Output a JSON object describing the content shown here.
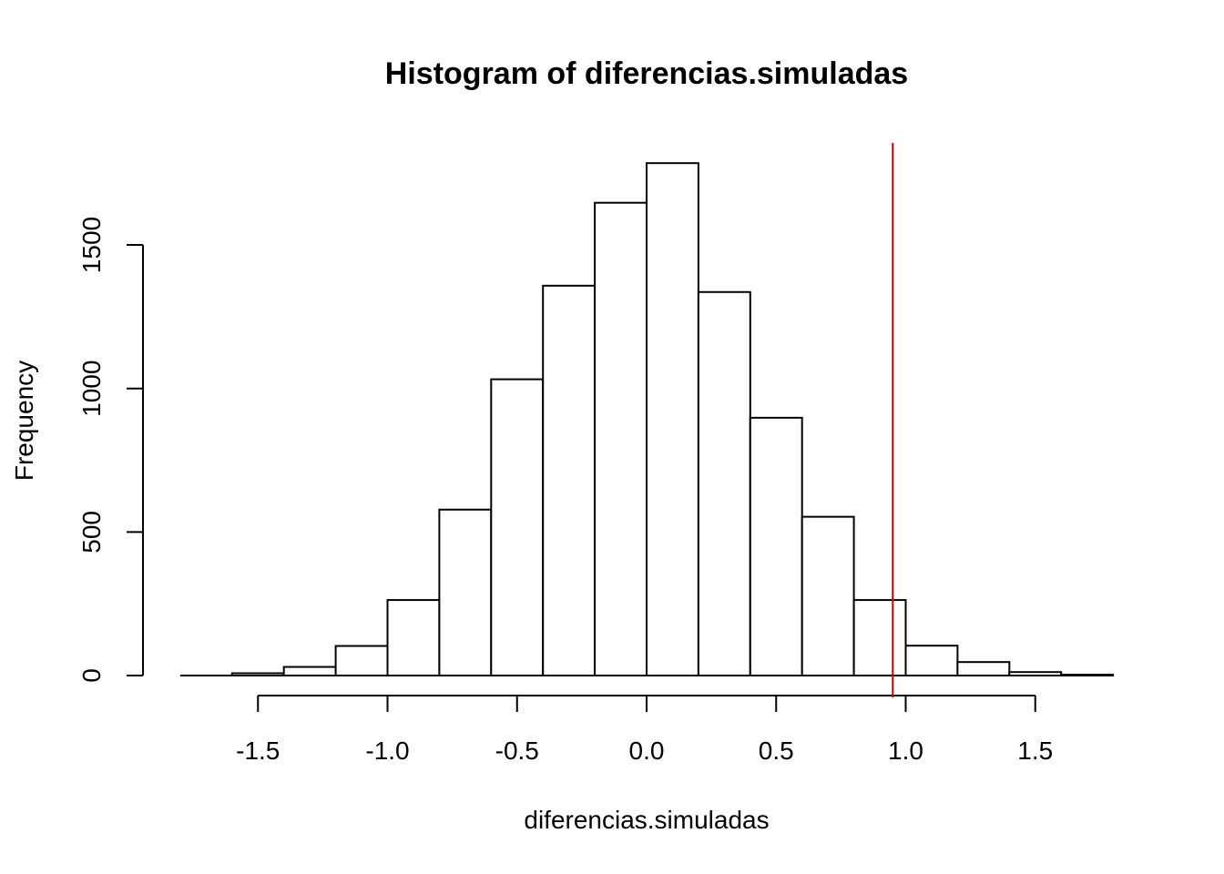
{
  "chart_data": {
    "type": "bar",
    "title": "Histogram of diferencias.simuladas",
    "xlabel": "diferencias.simuladas",
    "ylabel": "Frequency",
    "bin_edges": [
      -1.6,
      -1.4,
      -1.2,
      -1.0,
      -0.8,
      -0.6,
      -0.4,
      -0.2,
      0.0,
      0.2,
      0.4,
      0.6,
      0.8,
      1.0,
      1.2,
      1.4,
      1.6,
      1.8
    ],
    "values": [
      8,
      30,
      103,
      263,
      578,
      1032,
      1358,
      1647,
      1785,
      1336,
      898,
      553,
      263,
      104,
      47,
      12,
      3
    ],
    "baseline_x_range": [
      -1.8,
      1.8
    ],
    "x_ticks": [
      -1.5,
      -1.0,
      -0.5,
      0.0,
      0.5,
      1.0,
      1.5
    ],
    "x_tick_labels": [
      "-1.5",
      "-1.0",
      "-0.5",
      "0.0",
      "0.5",
      "1.0",
      "1.5"
    ],
    "y_ticks": [
      0,
      500,
      1000,
      1500
    ],
    "y_tick_labels": [
      "0",
      "500",
      "1000",
      "1500"
    ],
    "xlim": [
      -1.8,
      1.8
    ],
    "ylim": [
      0,
      1850
    ],
    "reference_line": {
      "x": 0.95,
      "color": "#d40000"
    },
    "bar_fill": "#ffffff",
    "bar_stroke": "#000000",
    "grid": false
  }
}
